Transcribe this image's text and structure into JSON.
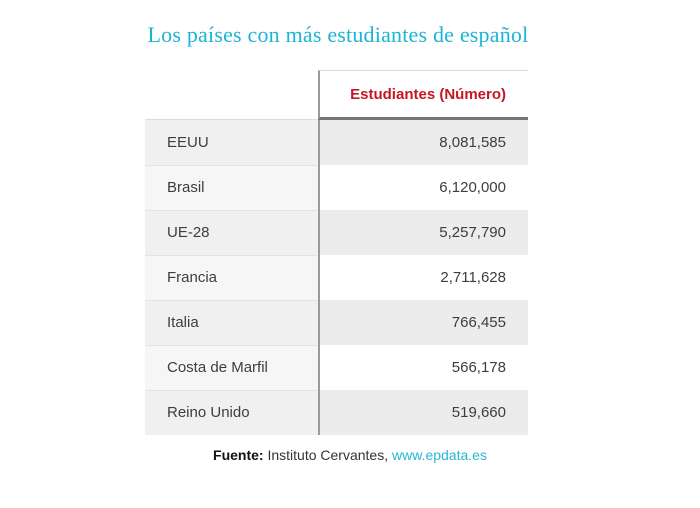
{
  "title": "Los países con más estudiantes de español",
  "table": {
    "header": {
      "country_label": "",
      "students_label": "Estudiantes (Número)"
    },
    "rows": [
      {
        "country": "EEUU",
        "students": "8,081,585"
      },
      {
        "country": "Brasil",
        "students": "6,120,000"
      },
      {
        "country": "UE-28",
        "students": "5,257,790"
      },
      {
        "country": "Francia",
        "students": "2,711,628"
      },
      {
        "country": "Italia",
        "students": "766,455"
      },
      {
        "country": "Costa de Marfil",
        "students": "566,178"
      },
      {
        "country": "Reino Unido",
        "students": "519,660"
      }
    ]
  },
  "footer": {
    "source_label": "Fuente:",
    "source_text": " Instituto Cervantes, ",
    "source_link": "www.epdata.es"
  },
  "colors": {
    "title": "#1cb4d5",
    "header_red": "#c51723",
    "link": "#29b7d3",
    "divider": "#9a9a9a",
    "body_text": "#3d3d3d"
  },
  "chart_data": {
    "type": "table",
    "title": "Los países con más estudiantes de español",
    "columns": [
      "",
      "Estudiantes (Número)"
    ],
    "categories": [
      "EEUU",
      "Brasil",
      "UE-28",
      "Francia",
      "Italia",
      "Costa de Marfil",
      "Reino Unido"
    ],
    "values": [
      8081585,
      6120000,
      5257790,
      2711628,
      766455,
      566178,
      519660
    ],
    "value_format": "thousands-comma",
    "source": "Fuente: Instituto Cervantes, www.epdata.es",
    "layout_hints": {
      "value_column_shaded_alternating": true,
      "country_column_shaded": true,
      "header_text_color": "red",
      "title_color": "cyan"
    }
  }
}
